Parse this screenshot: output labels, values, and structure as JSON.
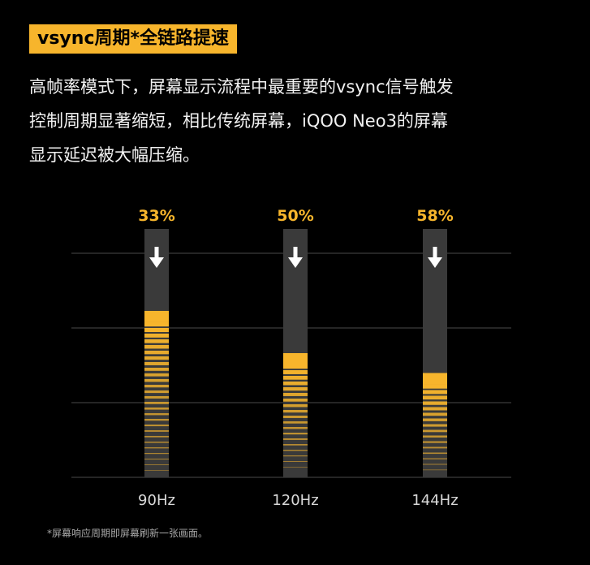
{
  "heading": "vsync周期*全链路提速",
  "description": {
    "lines": [
      "高帧率模式下，屏幕显示流程中最重要的vsync信号触发",
      "控制周期显著缩短，相比传统屏幕，iQOO Neo3的屏幕",
      "显示延迟被大幅压缩。"
    ]
  },
  "chart_data": {
    "type": "bar",
    "title": "",
    "xlabel": "",
    "ylabel": "",
    "categories": [
      "90Hz",
      "120Hz",
      "144Hz"
    ],
    "values": [
      0.67,
      0.5,
      0.42
    ],
    "data_labels": [
      "33%",
      "50%",
      "58%"
    ],
    "ylim": [
      0,
      1
    ],
    "grid": true,
    "legend": "none",
    "colors": {
      "accent": "#f7b52c",
      "track": "#3a3a3a",
      "grid": "#4a4a4a",
      "label": "#d9d9d9"
    }
  },
  "footnote": "*屏幕响应周期即屏幕刷新一张画面。"
}
